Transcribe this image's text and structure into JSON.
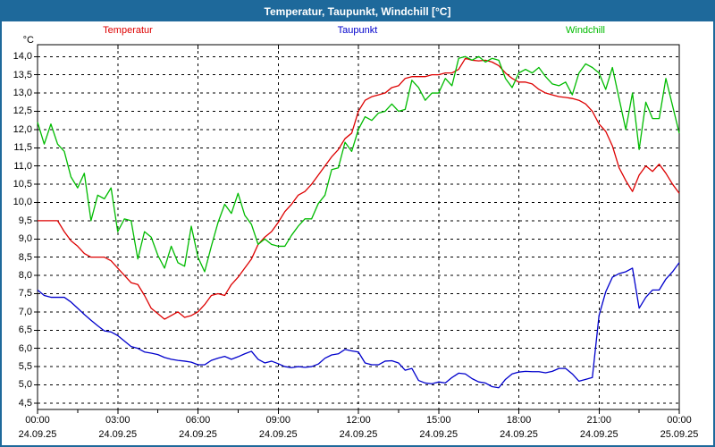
{
  "window": {
    "title": "Temperatur, Taupunkt, Windchill [°C]"
  },
  "colors": {
    "titlebar_bg": "#1e699b",
    "titlebar_text": "#ffffff",
    "window_border": "#1e699b",
    "plot_background": "#ffffff",
    "plot_border": "#000000",
    "grid": "#000000",
    "temperatur": "#dd0000",
    "taupunkt": "#0000cc",
    "windchill": "#00bb00"
  },
  "legend": [
    {
      "label": "Temperatur",
      "color": "#dd0000"
    },
    {
      "label": "Taupunkt",
      "color": "#0000cc"
    },
    {
      "label": "Windchill",
      "color": "#00bb00"
    }
  ],
  "axes": {
    "y_unit": "°C"
  },
  "chart_data": {
    "type": "line",
    "title": "Temperatur, Taupunkt, Windchill [°C]",
    "xlabel": "",
    "ylabel": "°C",
    "ylim": [
      4.3,
      14.35
    ],
    "grid": true,
    "legend_position": "top",
    "y_ticks": [
      {
        "label": "14,0",
        "value": 14.0
      },
      {
        "label": "13,5",
        "value": 13.5
      },
      {
        "label": "13,0",
        "value": 13.0
      },
      {
        "label": "12,5",
        "value": 12.5
      },
      {
        "label": "12,0",
        "value": 12.0
      },
      {
        "label": "11,5",
        "value": 11.5
      },
      {
        "label": "11,0",
        "value": 11.0
      },
      {
        "label": "10,5",
        "value": 10.5
      },
      {
        "label": "10,0",
        "value": 10.0
      },
      {
        "label": "9,5",
        "value": 9.5
      },
      {
        "label": "9,0",
        "value": 9.0
      },
      {
        "label": "8,5",
        "value": 8.5
      },
      {
        "label": "8,0",
        "value": 8.0
      },
      {
        "label": "7,5",
        "value": 7.5
      },
      {
        "label": "7,0",
        "value": 7.0
      },
      {
        "label": "6,5",
        "value": 6.5
      },
      {
        "label": "6,0",
        "value": 6.0
      },
      {
        "label": "5,5",
        "value": 5.5
      },
      {
        "label": "5,0",
        "value": 5.0
      },
      {
        "label": "4,5",
        "value": 4.5
      }
    ],
    "x_ticks": [
      {
        "hour": 0,
        "time": "00:00",
        "date": "24.09.25"
      },
      {
        "hour": 3,
        "time": "03:00",
        "date": "24.09.25"
      },
      {
        "hour": 6,
        "time": "06:00",
        "date": "24.09.25"
      },
      {
        "hour": 9,
        "time": "09:00",
        "date": "24.09.25"
      },
      {
        "hour": 12,
        "time": "12:00",
        "date": "24.09.25"
      },
      {
        "hour": 15,
        "time": "15:00",
        "date": "24.09.25"
      },
      {
        "hour": 18,
        "time": "18:00",
        "date": "24.09.25"
      },
      {
        "hour": 21,
        "time": "21:00",
        "date": "24.09.25"
      },
      {
        "hour": 24,
        "time": "00:00",
        "date": "25.09.25"
      }
    ],
    "x_gridline_hours": [
      3,
      6,
      9,
      12,
      15,
      18,
      21
    ],
    "x_minor_tick_hours": [
      1.5,
      4.5,
      7.5,
      10.5,
      13.5,
      16.5,
      19.5,
      22.5
    ],
    "x_hours": [
      0,
      0.25,
      0.5,
      0.75,
      1,
      1.25,
      1.5,
      1.75,
      2,
      2.25,
      2.5,
      2.75,
      3,
      3.25,
      3.5,
      3.75,
      4,
      4.25,
      4.5,
      4.75,
      5,
      5.25,
      5.5,
      5.75,
      6,
      6.25,
      6.5,
      6.75,
      7,
      7.25,
      7.5,
      7.75,
      8,
      8.25,
      8.5,
      8.75,
      9,
      9.25,
      9.5,
      9.75,
      10,
      10.25,
      10.5,
      10.75,
      11,
      11.25,
      11.5,
      11.75,
      12,
      12.25,
      12.5,
      12.75,
      13,
      13.25,
      13.5,
      13.75,
      14,
      14.25,
      14.5,
      14.75,
      15,
      15.25,
      15.5,
      15.75,
      16,
      16.25,
      16.5,
      16.75,
      17,
      17.25,
      17.5,
      17.75,
      18,
      18.25,
      18.5,
      18.75,
      19,
      19.25,
      19.5,
      19.75,
      20,
      20.25,
      20.5,
      20.75,
      21,
      21.25,
      21.5,
      21.75,
      22,
      22.25,
      22.5,
      22.75,
      23,
      23.25,
      23.5,
      23.75,
      24
    ],
    "series": [
      {
        "name": "Temperatur",
        "color": "#dd0000",
        "values": [
          9.5,
          9.5,
          9.5,
          9.5,
          9.2,
          8.95,
          8.8,
          8.6,
          8.5,
          8.5,
          8.5,
          8.4,
          8.2,
          8.0,
          7.8,
          7.75,
          7.45,
          7.1,
          6.95,
          6.8,
          6.9,
          7.0,
          6.85,
          6.9,
          7.0,
          7.2,
          7.45,
          7.5,
          7.45,
          7.75,
          7.95,
          8.2,
          8.45,
          8.85,
          9.05,
          9.2,
          9.45,
          9.75,
          9.95,
          10.2,
          10.3,
          10.5,
          10.75,
          11.0,
          11.25,
          11.45,
          11.75,
          11.9,
          12.5,
          12.8,
          12.9,
          12.95,
          13.0,
          13.15,
          13.2,
          13.4,
          13.45,
          13.45,
          13.45,
          13.5,
          13.5,
          13.55,
          13.55,
          13.65,
          13.95,
          13.9,
          13.88,
          13.9,
          13.85,
          13.75,
          13.55,
          13.4,
          13.3,
          13.3,
          13.25,
          13.1,
          13.0,
          12.95,
          12.9,
          12.88,
          12.85,
          12.8,
          12.7,
          12.5,
          12.15,
          11.95,
          11.55,
          10.95,
          10.6,
          10.3,
          10.75,
          11.0,
          10.85,
          11.05,
          10.8,
          10.5,
          10.25
        ]
      },
      {
        "name": "Taupunkt",
        "color": "#0000cc",
        "values": [
          7.6,
          7.45,
          7.4,
          7.4,
          7.4,
          7.27,
          7.1,
          6.93,
          6.77,
          6.62,
          6.48,
          6.45,
          6.35,
          6.2,
          6.05,
          6.0,
          5.9,
          5.87,
          5.83,
          5.75,
          5.7,
          5.67,
          5.65,
          5.62,
          5.55,
          5.55,
          5.67,
          5.73,
          5.78,
          5.7,
          5.77,
          5.85,
          5.92,
          5.7,
          5.6,
          5.65,
          5.58,
          5.5,
          5.47,
          5.5,
          5.48,
          5.5,
          5.57,
          5.73,
          5.82,
          5.85,
          5.97,
          5.93,
          5.9,
          5.6,
          5.55,
          5.55,
          5.65,
          5.66,
          5.6,
          5.4,
          5.45,
          5.12,
          5.05,
          5.03,
          5.08,
          5.05,
          5.2,
          5.32,
          5.3,
          5.17,
          5.08,
          5.05,
          4.95,
          4.92,
          5.15,
          5.3,
          5.35,
          5.37,
          5.36,
          5.36,
          5.33,
          5.37,
          5.45,
          5.45,
          5.3,
          5.1,
          5.15,
          5.2,
          6.9,
          7.55,
          7.95,
          8.05,
          8.1,
          8.2,
          7.1,
          7.4,
          7.6,
          7.6,
          7.9,
          8.1,
          8.35
        ]
      },
      {
        "name": "Windchill",
        "color": "#00bb00",
        "values": [
          12.2,
          11.6,
          12.15,
          11.6,
          11.4,
          10.7,
          10.4,
          10.8,
          9.5,
          10.2,
          10.1,
          10.4,
          9.2,
          9.55,
          9.5,
          8.45,
          9.2,
          9.05,
          8.55,
          8.2,
          8.8,
          8.35,
          8.25,
          9.35,
          8.5,
          8.1,
          8.8,
          9.45,
          9.95,
          9.7,
          10.25,
          9.65,
          9.4,
          8.85,
          9.0,
          8.85,
          8.8,
          8.8,
          9.1,
          9.35,
          9.55,
          9.55,
          9.97,
          10.2,
          10.9,
          10.95,
          11.65,
          11.4,
          12.0,
          12.35,
          12.25,
          12.45,
          12.5,
          12.7,
          12.5,
          12.55,
          13.35,
          13.15,
          12.8,
          13.0,
          13.0,
          13.4,
          13.2,
          13.95,
          14.0,
          13.9,
          14.0,
          13.85,
          13.95,
          13.9,
          13.4,
          13.15,
          13.55,
          13.65,
          13.55,
          13.7,
          13.45,
          13.25,
          13.2,
          13.3,
          12.95,
          13.55,
          13.8,
          13.7,
          13.55,
          13.1,
          13.7,
          12.85,
          12.0,
          13.0,
          11.45,
          12.75,
          12.3,
          12.3,
          13.4,
          12.65,
          11.9
        ]
      }
    ]
  }
}
